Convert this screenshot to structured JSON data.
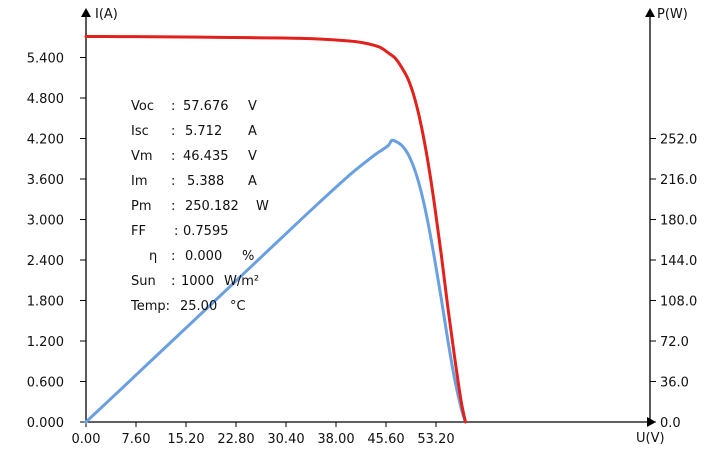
{
  "chart_data": {
    "type": "line",
    "title": "",
    "axes": {
      "x": {
        "label": "U(V)",
        "range": [
          0,
          60.8
        ],
        "ticks": [
          0,
          7.6,
          15.2,
          22.8,
          30.4,
          38,
          45.6,
          53.2
        ],
        "tick_labels": [
          "0.00",
          "7.60",
          "15.20",
          "22.80",
          "30.40",
          "38.00",
          "45.60",
          "53.20"
        ]
      },
      "y_left": {
        "label": "I(A)",
        "range": [
          0,
          6.0
        ],
        "ticks": [
          0,
          0.6,
          1.2,
          1.8,
          2.4,
          3.0,
          3.6,
          4.2,
          4.8,
          5.4
        ],
        "tick_labels": [
          "0.000",
          "0.600",
          "1.200",
          "1.800",
          "2.400",
          "3.000",
          "3.600",
          "4.200",
          "4.800",
          "5.400"
        ]
      },
      "y_right": {
        "label": "P(W)",
        "range": [
          0,
          288
        ],
        "ticks": [
          0,
          36,
          72,
          108,
          144,
          180,
          216,
          252
        ],
        "tick_labels": [
          "0.0",
          "36.0",
          "72.0",
          "108.0",
          "144.0",
          "180.0",
          "216.0",
          "252.0"
        ]
      }
    },
    "grid": false,
    "series": [
      {
        "axis": "left",
        "color": "#e3211c",
        "x": [
          0,
          5,
          10,
          15,
          20,
          25,
          30,
          35,
          40,
          42,
          44,
          45,
          46,
          47,
          48,
          49,
          50,
          51,
          52,
          53,
          54,
          55,
          56,
          57,
          57.676
        ],
        "y": [
          5.712,
          5.71,
          5.707,
          5.703,
          5.699,
          5.694,
          5.688,
          5.676,
          5.645,
          5.62,
          5.575,
          5.535,
          5.465,
          5.39,
          5.25,
          5.07,
          4.78,
          4.37,
          3.84,
          3.2,
          2.48,
          1.7,
          0.98,
          0.32,
          0
        ]
      },
      {
        "axis": "right",
        "color": "#6a9fe0",
        "x": [
          0,
          5,
          10,
          15,
          20,
          25,
          30,
          35,
          40,
          42,
          44,
          45,
          46,
          46.435,
          47,
          48,
          49,
          50,
          51,
          52,
          53,
          54,
          55,
          56,
          57,
          57.676
        ],
        "y": [
          0,
          27.4,
          55,
          82.5,
          110,
          137.6,
          165.2,
          192.6,
          219.2,
          228.8,
          237.9,
          241.8,
          246.1,
          250.182,
          249.7,
          245.8,
          237.6,
          223.6,
          203.4,
          176.6,
          144.5,
          109.8,
          72.7,
          39.2,
          12.8,
          0
        ]
      }
    ],
    "annotations": {
      "voc": {
        "label": "Voc",
        "value": "57.676",
        "unit": "V"
      },
      "isc": {
        "label": "Isc",
        "value": "5.712",
        "unit": "A"
      },
      "vm": {
        "label": "Vm",
        "value": "46.435",
        "unit": "V"
      },
      "im": {
        "label": "Im",
        "value": "5.388",
        "unit": "A"
      },
      "pm": {
        "label": "Pm",
        "value": "250.182",
        "unit": "W"
      },
      "ff": {
        "label": "FF",
        "value": "0.7595",
        "unit": ""
      },
      "eta": {
        "label": "η",
        "value": "0.000",
        "unit": "%"
      },
      "sun": {
        "label": "Sun",
        "value": "1000",
        "unit": "W/m²"
      },
      "temp": {
        "label": "Temp:",
        "value": "25.00",
        "unit": "°C"
      }
    }
  }
}
